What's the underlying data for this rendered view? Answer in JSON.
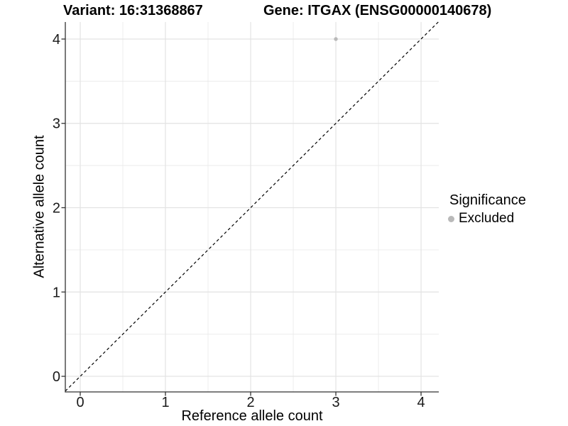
{
  "chart_data": {
    "type": "scatter",
    "titles": {
      "left": "Variant: 16:31368867",
      "right": "Gene: ITGAX (ENSG00000140678)"
    },
    "xlabel": "Reference allele count",
    "ylabel": "Alternative allele count",
    "xlim": [
      -0.175,
      4.208
    ],
    "ylim": [
      -0.185,
      4.202
    ],
    "x_ticks": [
      0,
      1,
      2,
      3,
      4
    ],
    "y_ticks": [
      0,
      1,
      2,
      3,
      4
    ],
    "grid": "on",
    "minor_gridlines_at_half_units": true,
    "points": [
      {
        "x": 3,
        "y": 4,
        "series": "Excluded"
      }
    ],
    "reference_line": {
      "type": "identity",
      "slope": 1,
      "intercept": 0,
      "style": "dashed",
      "color": "#000000"
    },
    "legend": {
      "position": "right",
      "title": "Significance",
      "items": [
        {
          "label": "Excluded",
          "color": "#b9b9b9",
          "marker": "circle"
        }
      ]
    },
    "colors": {
      "point": "#b9b9b9",
      "major_grid": "#e3e3e3",
      "minor_grid": "#ebebeb",
      "axis": "#333333",
      "tick_text": "#1a1a1a"
    }
  }
}
